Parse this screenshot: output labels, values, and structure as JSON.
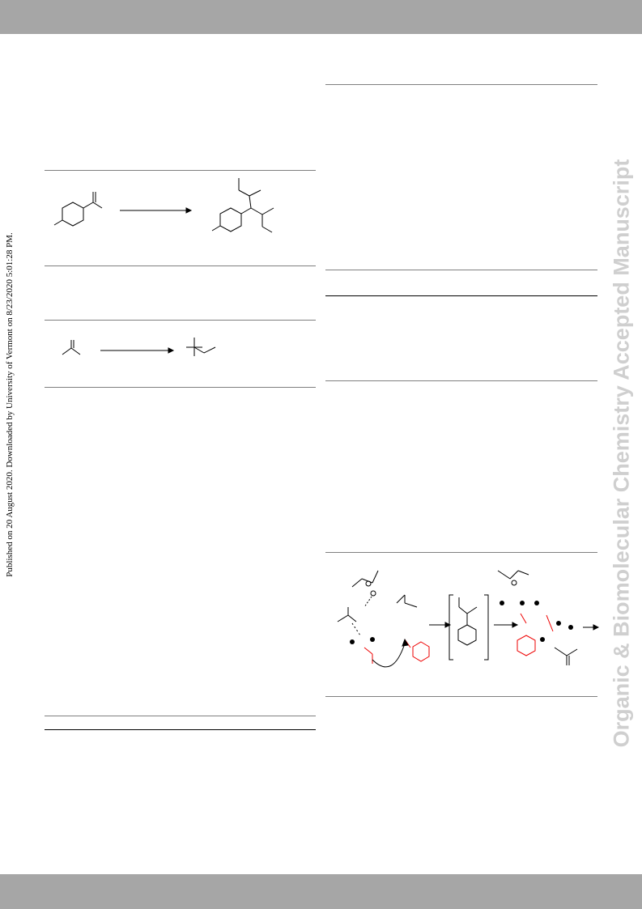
{
  "side_note": "Published on 20 August 2020. Downloaded by University of Vermont on 8/23/2020 5:01:28 PM.",
  "watermark": "Organic & Biomolecular Chemistry Accepted Manuscript"
}
